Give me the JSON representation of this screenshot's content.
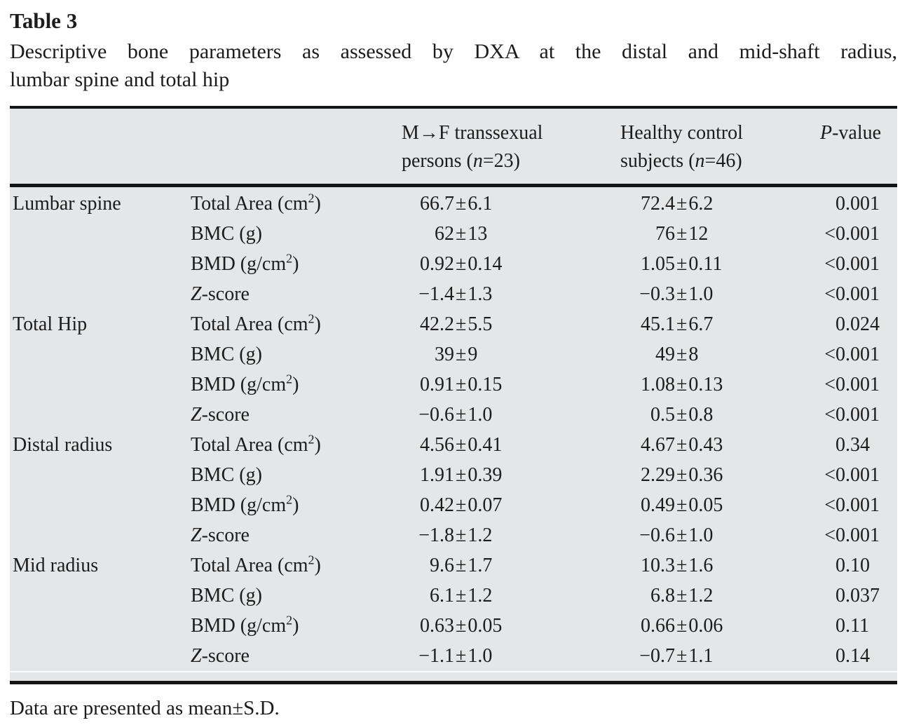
{
  "title": "Table 3",
  "caption_line1": "Descriptive bone parameters as assessed by DXA at the distal and mid-shaft radius,",
  "caption_line2": "lumbar spine and total hip",
  "colors": {
    "table_background": "#e5e6e7",
    "rule": "#141414",
    "text": "#1c1c1c"
  },
  "header": {
    "group1": {
      "line1": "M→F transsexual",
      "line2_pre": "persons (",
      "line2_var": "n",
      "line2_post": "=23)"
    },
    "group2": {
      "line1": "Healthy control",
      "line2_pre": "subjects (",
      "line2_var": "n",
      "line2_post": "=46)"
    },
    "pvalue_var": "P",
    "pvalue_post": "-value"
  },
  "rows": [
    {
      "region": "Lumbar spine",
      "param": [
        {
          "t": "Total Area (cm"
        },
        {
          "t": "2",
          "sup": true
        },
        {
          "t": ")"
        }
      ],
      "g1": "66.7±6.1",
      "g2": "72.4±6.2",
      "p": "0.001"
    },
    {
      "region": "",
      "param": [
        {
          "t": "BMC (g)"
        }
      ],
      "g1": "62±13",
      "g2": "76±12",
      "p": "<0.001"
    },
    {
      "region": "",
      "param": [
        {
          "t": "BMD (g/cm"
        },
        {
          "t": "2",
          "sup": true
        },
        {
          "t": ")"
        }
      ],
      "g1": "0.92±0.14",
      "g2": "1.05±0.11",
      "p": "<0.001"
    },
    {
      "region": "",
      "param": [
        {
          "t": "Z",
          "i": true
        },
        {
          "t": "-score"
        }
      ],
      "g1": "−1.4±1.3",
      "g2": "−0.3±1.0",
      "p": "<0.001"
    },
    {
      "region": "Total Hip",
      "param": [
        {
          "t": "Total Area (cm"
        },
        {
          "t": "2",
          "sup": true
        },
        {
          "t": ")"
        }
      ],
      "g1": "42.2±5.5",
      "g2": "45.1±6.7",
      "p": "0.024"
    },
    {
      "region": "",
      "param": [
        {
          "t": "BMC (g)"
        }
      ],
      "g1": "39±9",
      "g2": "49±8",
      "p": "<0.001"
    },
    {
      "region": "",
      "param": [
        {
          "t": "BMD (g/cm"
        },
        {
          "t": "2",
          "sup": true
        },
        {
          "t": ")"
        }
      ],
      "g1": "0.91±0.15",
      "g2": "1.08±0.13",
      "p": "<0.001"
    },
    {
      "region": "",
      "param": [
        {
          "t": "Z",
          "i": true
        },
        {
          "t": "-score"
        }
      ],
      "g1": "−0.6±1.0",
      "g2": "0.5±0.8",
      "p": "<0.001"
    },
    {
      "region": "Distal radius",
      "param": [
        {
          "t": "Total Area (cm"
        },
        {
          "t": "2",
          "sup": true
        },
        {
          "t": ")"
        }
      ],
      "g1": "4.56±0.41",
      "g2": "4.67±0.43",
      "p": "0.34"
    },
    {
      "region": "",
      "param": [
        {
          "t": "BMC (g)"
        }
      ],
      "g1": "1.91±0.39",
      "g2": "2.29±0.36",
      "p": "<0.001"
    },
    {
      "region": "",
      "param": [
        {
          "t": "BMD (g/cm"
        },
        {
          "t": "2",
          "sup": true
        },
        {
          "t": ")"
        }
      ],
      "g1": "0.42±0.07",
      "g2": "0.49±0.05",
      "p": "<0.001"
    },
    {
      "region": "",
      "param": [
        {
          "t": "Z",
          "i": true
        },
        {
          "t": "-score"
        }
      ],
      "g1": "−1.8±1.2",
      "g2": "−0.6±1.0",
      "p": "<0.001"
    },
    {
      "region": "Mid radius",
      "param": [
        {
          "t": "Total Area (cm"
        },
        {
          "t": "2",
          "sup": true
        },
        {
          "t": ")"
        }
      ],
      "g1": "9.6±1.7",
      "g2": "10.3±1.6",
      "p": "0.10"
    },
    {
      "region": "",
      "param": [
        {
          "t": "BMC (g)"
        }
      ],
      "g1": "6.1±1.2",
      "g2": "6.8±1.2",
      "p": "0.037"
    },
    {
      "region": "",
      "param": [
        {
          "t": "BMD (g/cm"
        },
        {
          "t": "2",
          "sup": true
        },
        {
          "t": ")"
        }
      ],
      "g1": "0.63±0.05",
      "g2": "0.66±0.06",
      "p": "0.11"
    },
    {
      "region": "",
      "param": [
        {
          "t": "Z",
          "i": true
        },
        {
          "t": "-score"
        }
      ],
      "g1": "−1.1±1.0",
      "g2": "−0.7±1.1",
      "p": "0.14"
    }
  ],
  "footnote": "Data are presented as mean±S.D."
}
